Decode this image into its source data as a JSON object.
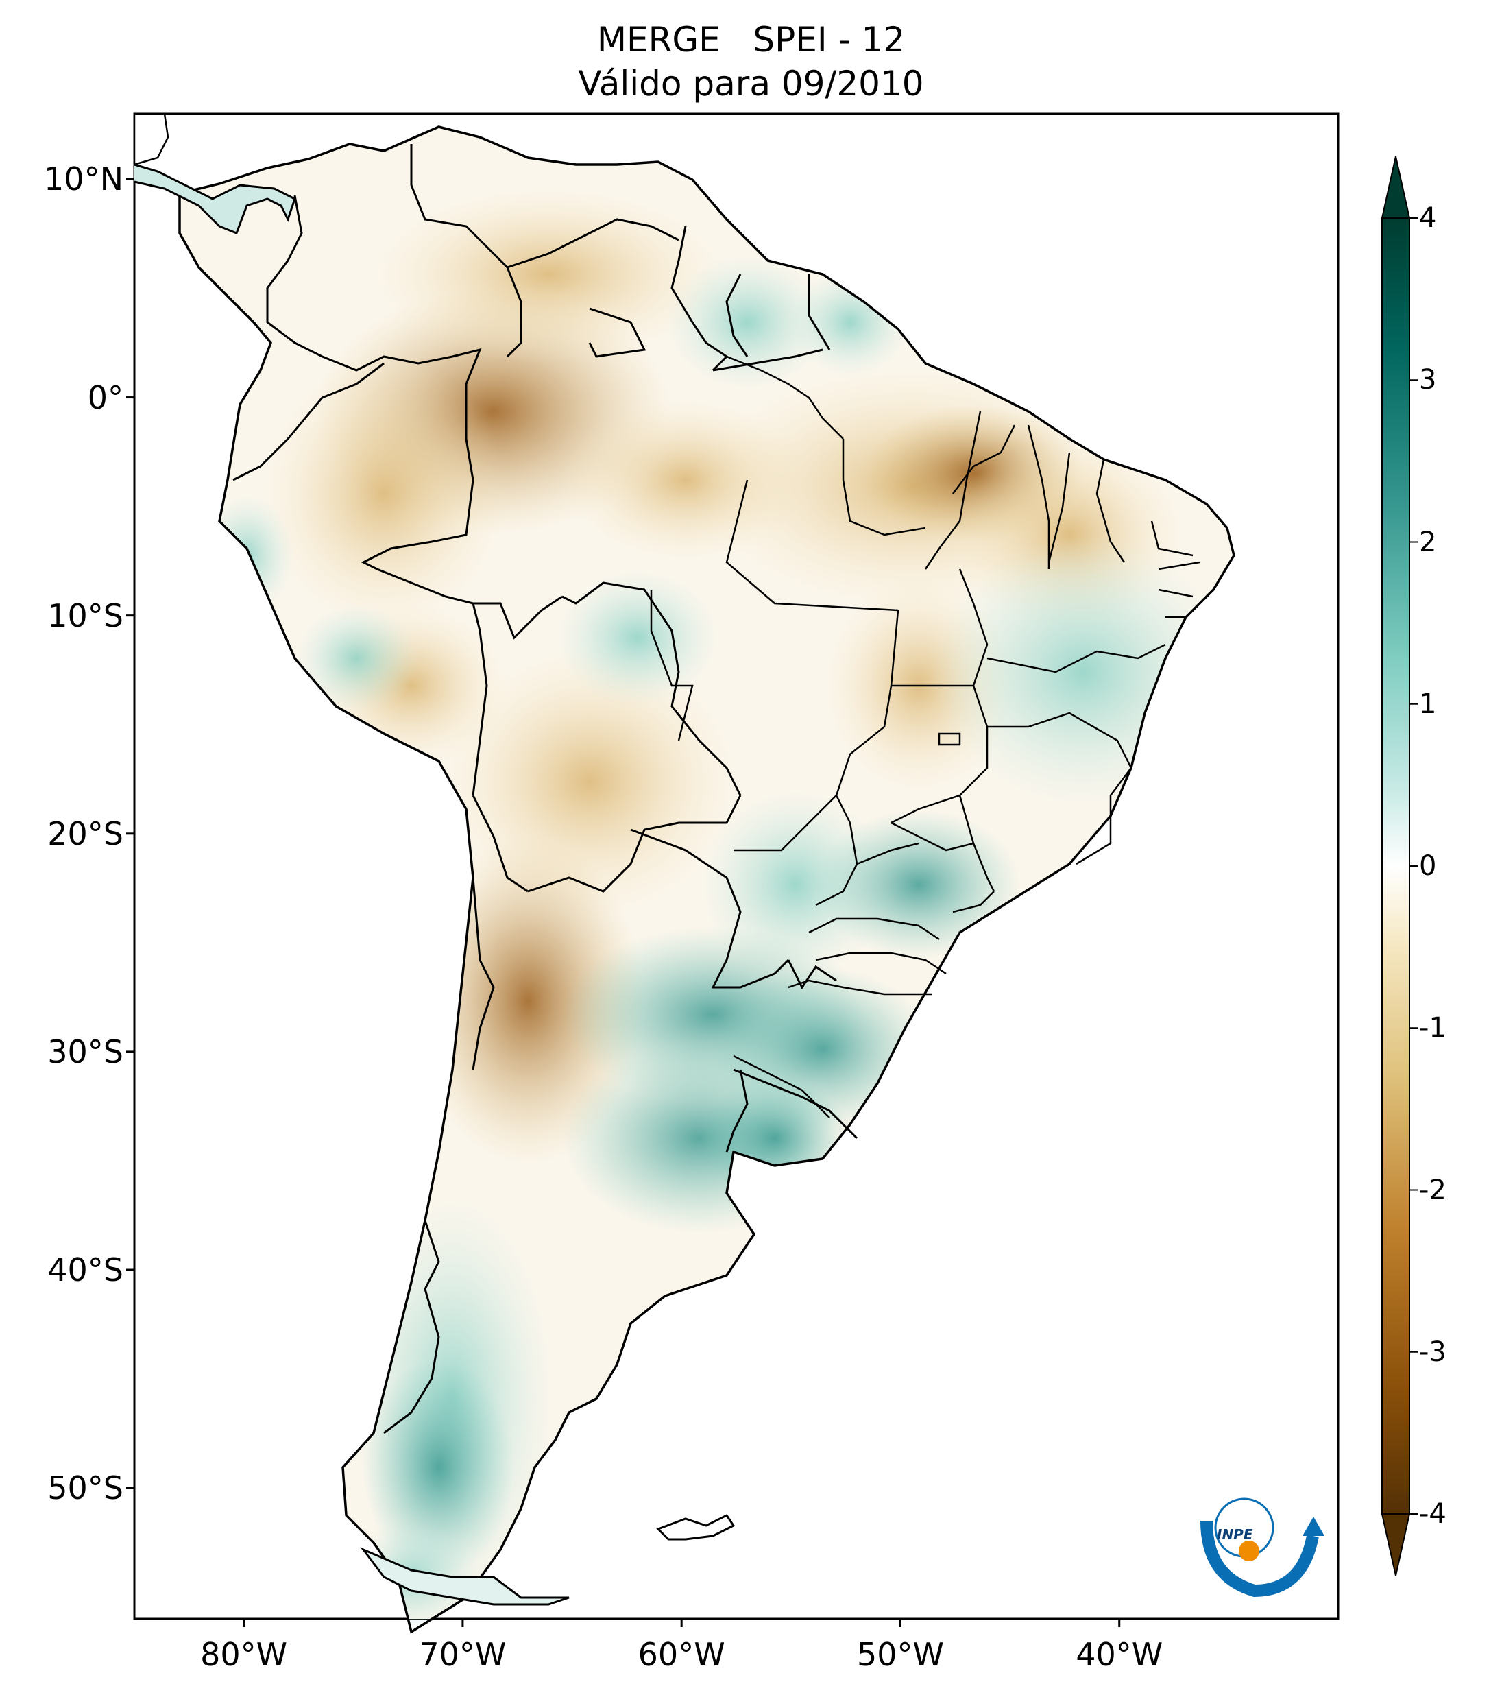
{
  "title": {
    "line1": "MERGE   SPEI - 12",
    "line2": "Válido para 09/2010"
  },
  "map": {
    "region": "South America",
    "lon_range": [
      -85,
      -30
    ],
    "lat_range": [
      -56,
      13
    ],
    "lat_ticks": [
      {
        "label": "10°N",
        "lat": 10
      },
      {
        "label": "0°",
        "lat": 0
      },
      {
        "label": "10°S",
        "lat": -10
      },
      {
        "label": "20°S",
        "lat": -20
      },
      {
        "label": "30°S",
        "lat": -30
      },
      {
        "label": "40°S",
        "lat": -40
      },
      {
        "label": "50°S",
        "lat": -50
      }
    ],
    "lon_ticks": [
      {
        "label": "80°W",
        "lon": -80
      },
      {
        "label": "70°W",
        "lon": -70
      },
      {
        "label": "60°W",
        "lon": -60
      },
      {
        "label": "50°W",
        "lon": -50
      },
      {
        "label": "40°W",
        "lon": -40
      }
    ]
  },
  "colorbar": {
    "min": -4,
    "max": 4,
    "extend": "both",
    "ticks": [
      "4",
      "3",
      "2",
      "1",
      "0",
      "-1",
      "-2",
      "-3",
      "-4"
    ],
    "colors": [
      "#543005",
      "#8c510a",
      "#bf812d",
      "#dfc27d",
      "#f6e8c3",
      "#ffffff",
      "#c7eae5",
      "#80cdc1",
      "#35978f",
      "#01665e",
      "#003c30"
    ]
  },
  "logo": {
    "text": "INPE",
    "colors": {
      "arc": "#0a6eb4",
      "dot": "#f08c00"
    }
  }
}
